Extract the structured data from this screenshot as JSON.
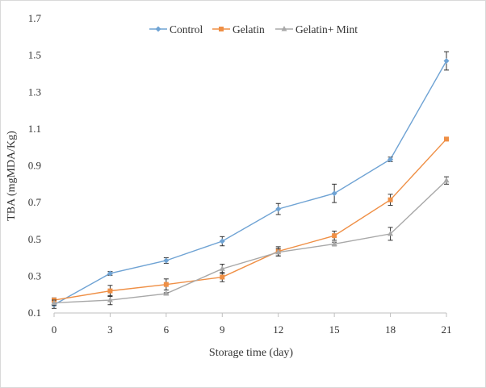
{
  "chart_data": {
    "type": "line",
    "title": "",
    "xlabel": "Storage time (day)",
    "ylabel": "TBA (mgMDA/Kg)",
    "x": [
      0,
      3,
      6,
      9,
      12,
      15,
      18,
      21
    ],
    "x_ticks": [
      "0",
      "3",
      "6",
      "9",
      "12",
      "15",
      "18",
      "21"
    ],
    "y_ticks": [
      "0.1",
      "0.3",
      "0.5",
      "0.7",
      "0.9",
      "1.1",
      "1.3",
      "1.5",
      "1.7"
    ],
    "ylim": [
      0.1,
      1.7
    ],
    "grid": false,
    "legend_position": "top",
    "series": [
      {
        "name": "Control",
        "color": "#6fa3d4",
        "marker": "diamond",
        "values": [
          0.145,
          0.315,
          0.385,
          0.49,
          0.665,
          0.75,
          0.935,
          1.47
        ],
        "errors": [
          0.02,
          0.01,
          0.015,
          0.025,
          0.03,
          0.05,
          0.012,
          0.05
        ]
      },
      {
        "name": "Gelatin",
        "color": "#ef8f45",
        "marker": "square",
        "values": [
          0.17,
          0.22,
          0.255,
          0.295,
          0.435,
          0.52,
          0.715,
          1.045
        ],
        "errors": [
          0.012,
          0.03,
          0.03,
          0.025,
          0.025,
          0.025,
          0.03,
          0.008
        ]
      },
      {
        "name": "Gelatin+ Mint",
        "color": "#a8a8a8",
        "marker": "triangle",
        "values": [
          0.155,
          0.17,
          0.205,
          0.34,
          0.43,
          0.475,
          0.53,
          0.82
        ],
        "errors": [
          0.015,
          0.025,
          0.005,
          0.025,
          0.02,
          0.01,
          0.035,
          0.02
        ]
      }
    ]
  }
}
